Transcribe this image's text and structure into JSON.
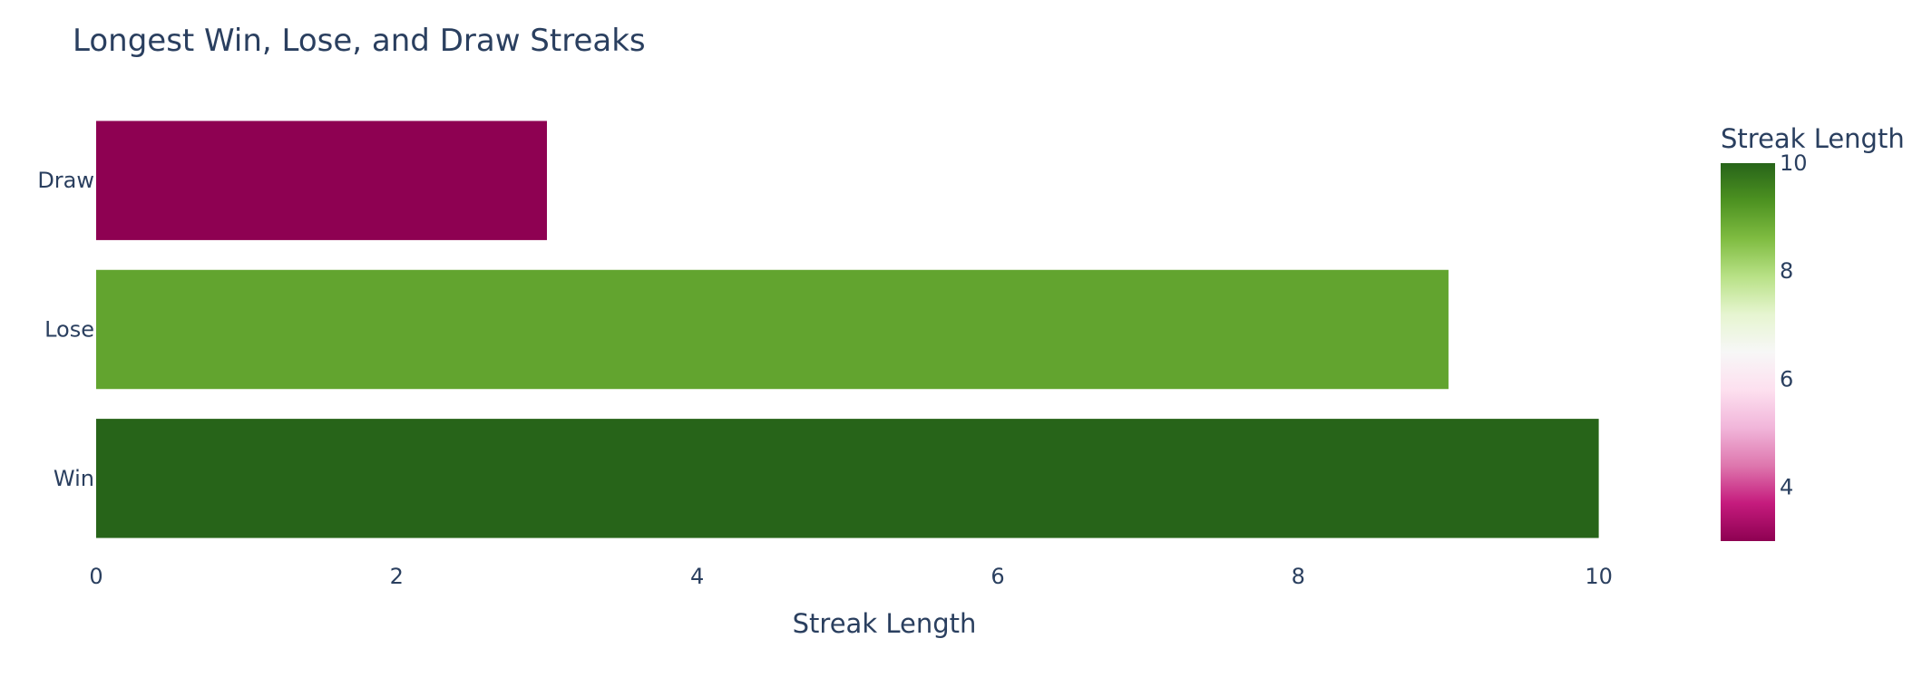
{
  "chart_data": {
    "type": "bar",
    "orientation": "horizontal",
    "title": "Longest Win, Lose, and Draw Streaks",
    "xlabel": "Streak Length",
    "ylabel": "",
    "categories": [
      "Win",
      "Lose",
      "Draw"
    ],
    "values": [
      10,
      9,
      3
    ],
    "xlim": [
      0,
      10.6
    ],
    "x_ticks": [
      "0",
      "2",
      "4",
      "6",
      "8",
      "10"
    ],
    "grid": false,
    "colorbar": {
      "title": "Streak Length",
      "range": [
        3,
        10
      ],
      "ticks": [
        "4",
        "6",
        "8",
        "10"
      ],
      "colors": [
        "#8e0152",
        "#c51b7d",
        "#de77ae",
        "#f1b6da",
        "#fde0ef",
        "#f7f7f7",
        "#e6f5d0",
        "#b8e186",
        "#7fbc41",
        "#4d9221",
        "#276419"
      ]
    }
  }
}
